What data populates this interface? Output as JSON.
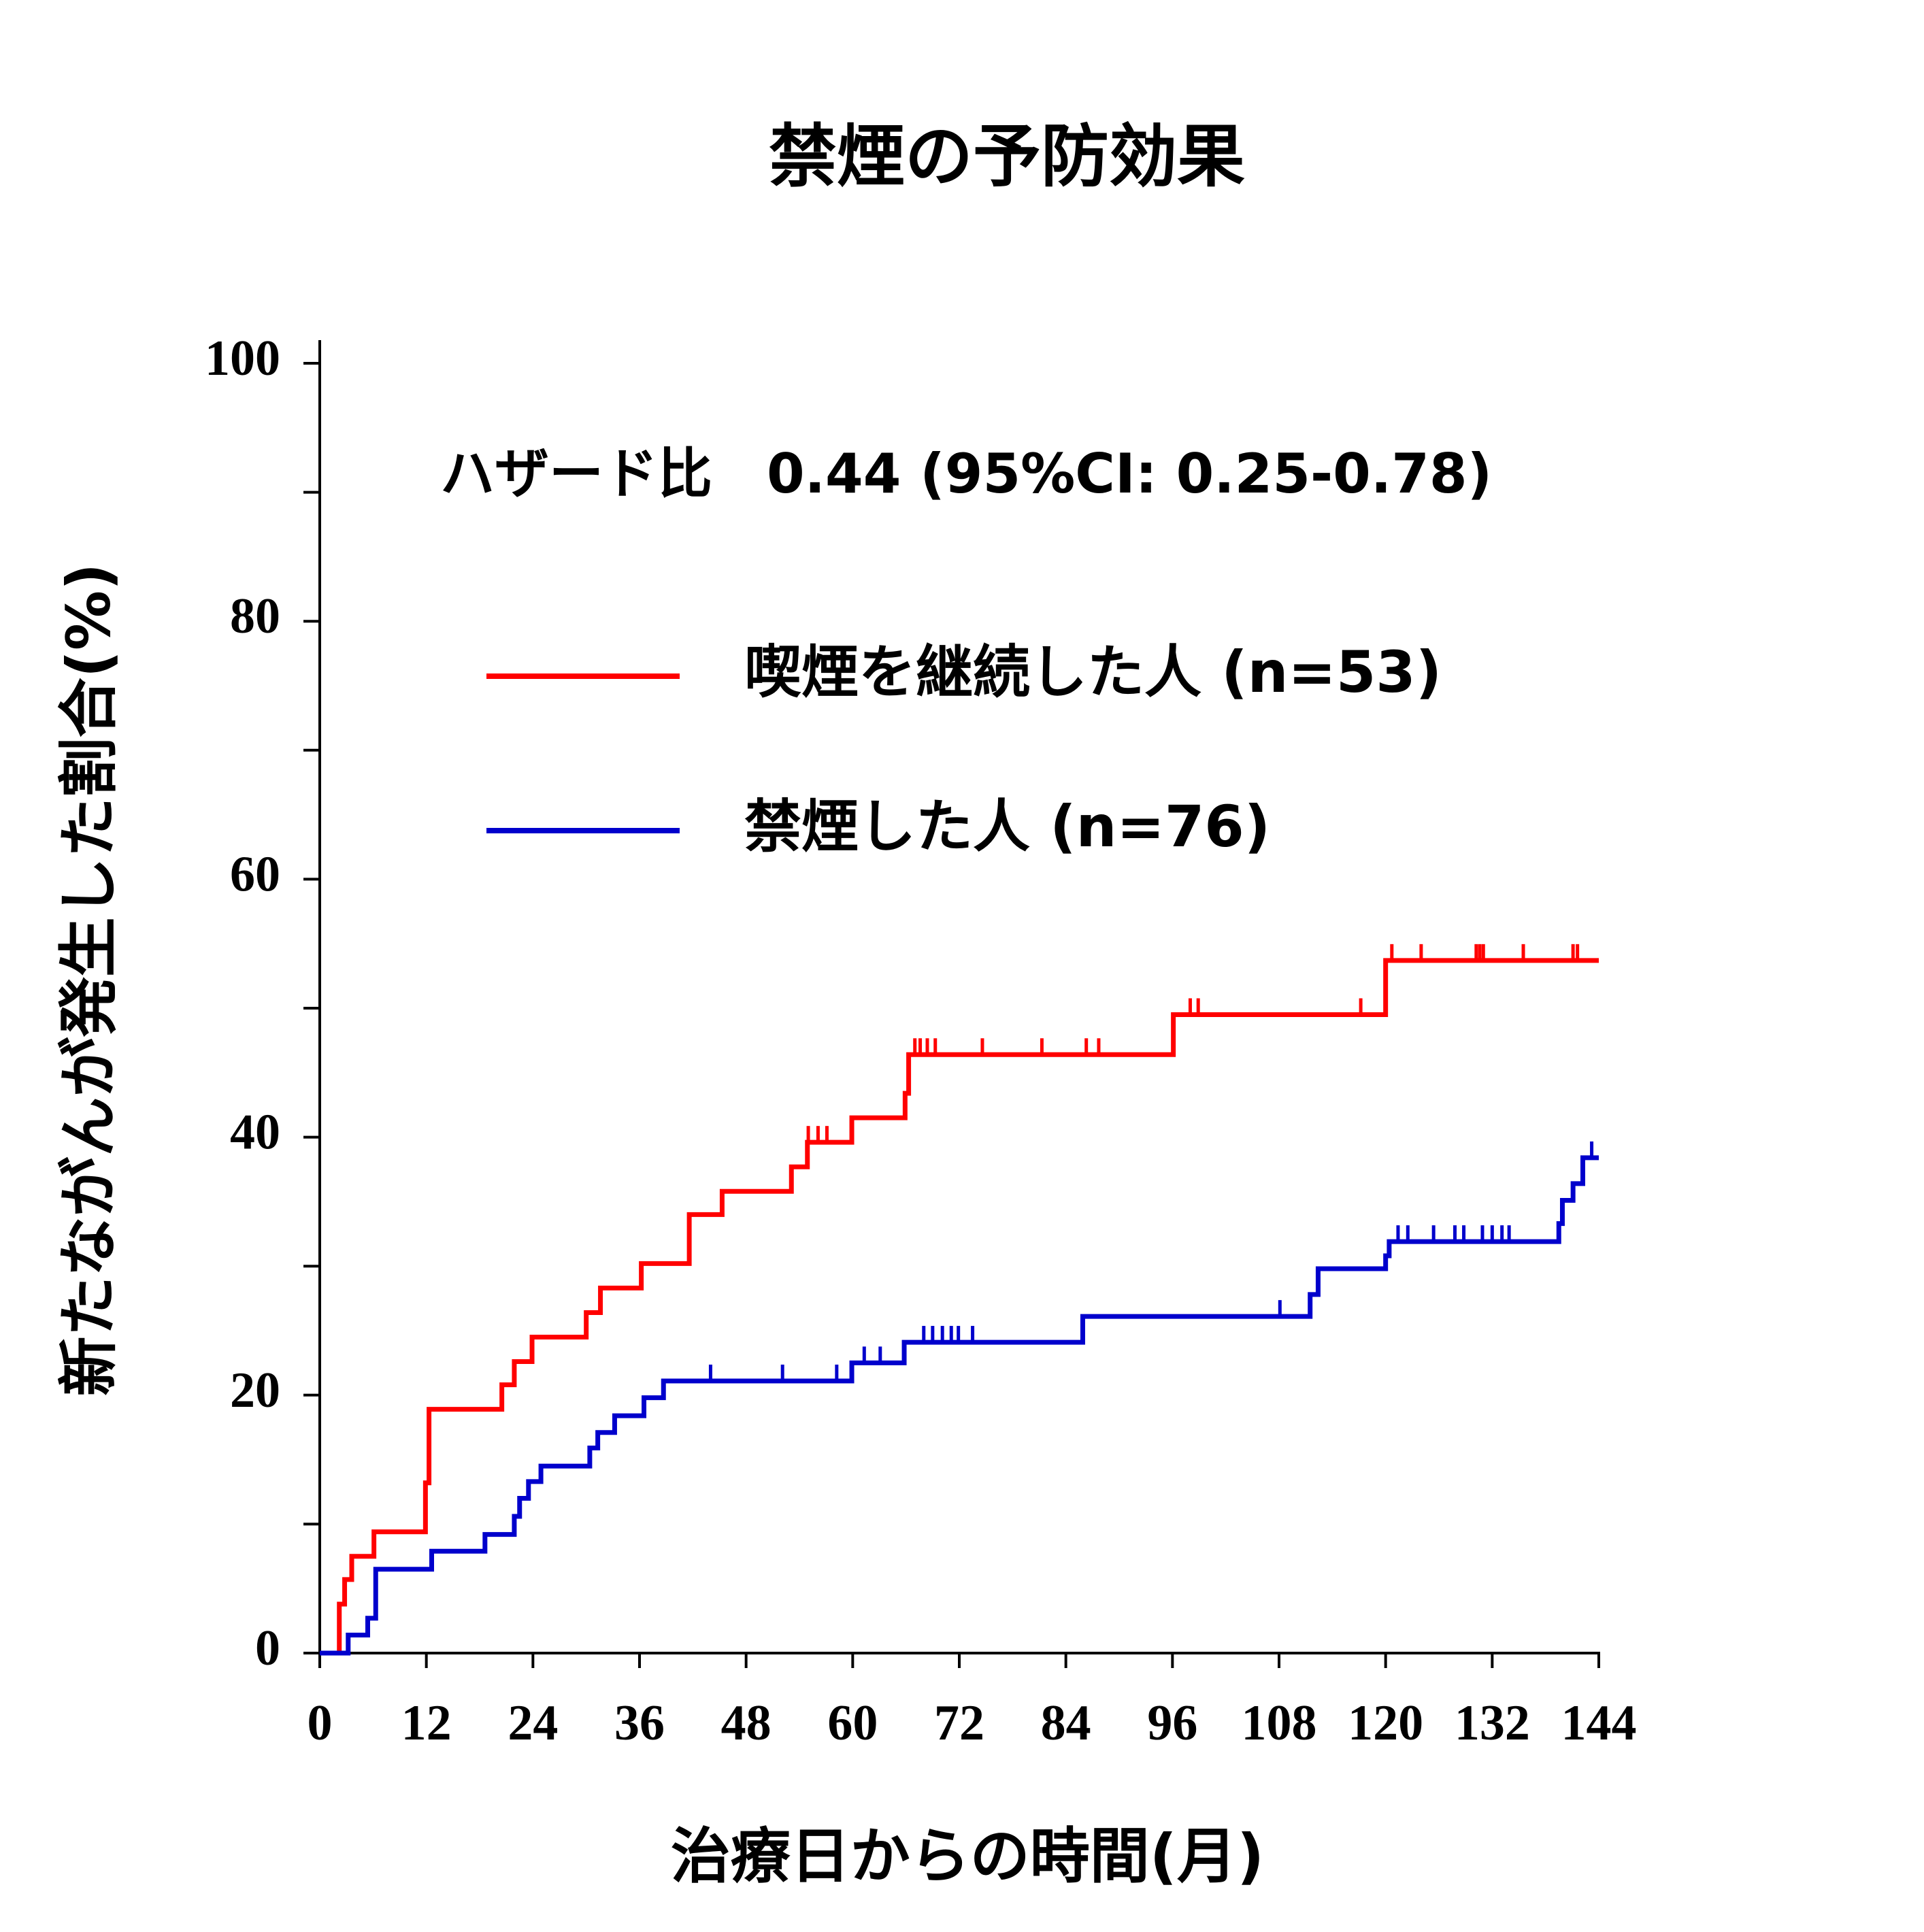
{
  "chart_data": {
    "type": "km",
    "title": "禁煙の予防効果",
    "x_label": "治療日からの時間(月)",
    "y_label": "新たながんが発生した割合(%)",
    "annotation": "ハザード比　0.44 (95%CI: 0.25-0.78)",
    "xlim": [
      0,
      144
    ],
    "ylim": [
      0,
      100
    ],
    "xticks": [
      0,
      12,
      24,
      36,
      48,
      60,
      72,
      84,
      96,
      108,
      120,
      132,
      144
    ],
    "yticks": [
      0,
      20,
      40,
      60,
      80,
      100
    ],
    "yticks_minor": [
      10,
      30,
      50,
      70,
      90
    ],
    "series": [
      {
        "name": "喫煙を継続した人 (n=53)",
        "color": "#ff0000",
        "x": [
          0,
          2.2,
          2.8,
          3.6,
          6.1,
          11.9,
          12.3,
          20.5,
          21.9,
          23.9,
          30.0,
          31.6,
          36.2,
          41.6,
          45.3,
          53.1,
          54.9,
          59.9,
          65.9,
          66.3,
          96.1,
          120.0,
          144
        ],
        "values": [
          0,
          3.8,
          5.7,
          7.5,
          9.4,
          13.2,
          18.9,
          20.8,
          22.6,
          24.5,
          26.4,
          28.3,
          30.2,
          34.0,
          35.8,
          37.7,
          39.6,
          41.5,
          43.4,
          46.4,
          49.5,
          53.7,
          53.7
        ],
        "censored_x": [
          55.0,
          56.1,
          57.1,
          67.0,
          67.6,
          68.4,
          69.3,
          74.6,
          81.3,
          86.3,
          87.7,
          98.0,
          98.9,
          117.2,
          120.7,
          124.0,
          130.2,
          130.6,
          131.0,
          135.5,
          141.1,
          141.6
        ],
        "censored_y": [
          39.6,
          39.6,
          39.6,
          46.4,
          46.4,
          46.4,
          46.4,
          46.4,
          46.4,
          46.4,
          46.4,
          49.5,
          49.5,
          49.5,
          53.7,
          53.7,
          53.7,
          53.7,
          53.7,
          53.7,
          53.7,
          53.7
        ]
      },
      {
        "name": "禁煙した人 (n=76)",
        "color": "#0000cc",
        "x": [
          0,
          3.2,
          5.4,
          6.3,
          12.6,
          18.6,
          21.9,
          22.5,
          23.5,
          24.9,
          30.4,
          31.3,
          33.2,
          36.5,
          38.7,
          59.9,
          65.8,
          85.9,
          111.5,
          112.4,
          120.0,
          120.4,
          139.5,
          139.9,
          141.1,
          142.2,
          144
        ],
        "values": [
          0,
          1.4,
          2.7,
          6.5,
          7.9,
          9.2,
          10.6,
          12.0,
          13.3,
          14.5,
          15.9,
          17.1,
          18.4,
          19.8,
          21.1,
          22.5,
          24.1,
          26.1,
          27.8,
          29.8,
          30.8,
          31.9,
          33.3,
          35.1,
          36.4,
          38.4,
          38.4
        ],
        "censored_x": [
          44.0,
          52.1,
          58.2,
          61.3,
          63.1,
          68.0,
          69.0,
          70.1,
          71.1,
          71.9,
          73.5,
          108.1,
          121.4,
          122.5,
          125.4,
          127.8,
          128.8,
          130.9,
          132.0,
          133.1,
          133.9,
          143.2
        ],
        "censored_y": [
          21.1,
          21.1,
          21.1,
          22.5,
          22.5,
          24.1,
          24.1,
          24.1,
          24.1,
          24.1,
          24.1,
          26.1,
          31.9,
          31.9,
          31.9,
          31.9,
          31.9,
          31.9,
          31.9,
          31.9,
          31.9,
          38.4
        ]
      }
    ]
  }
}
